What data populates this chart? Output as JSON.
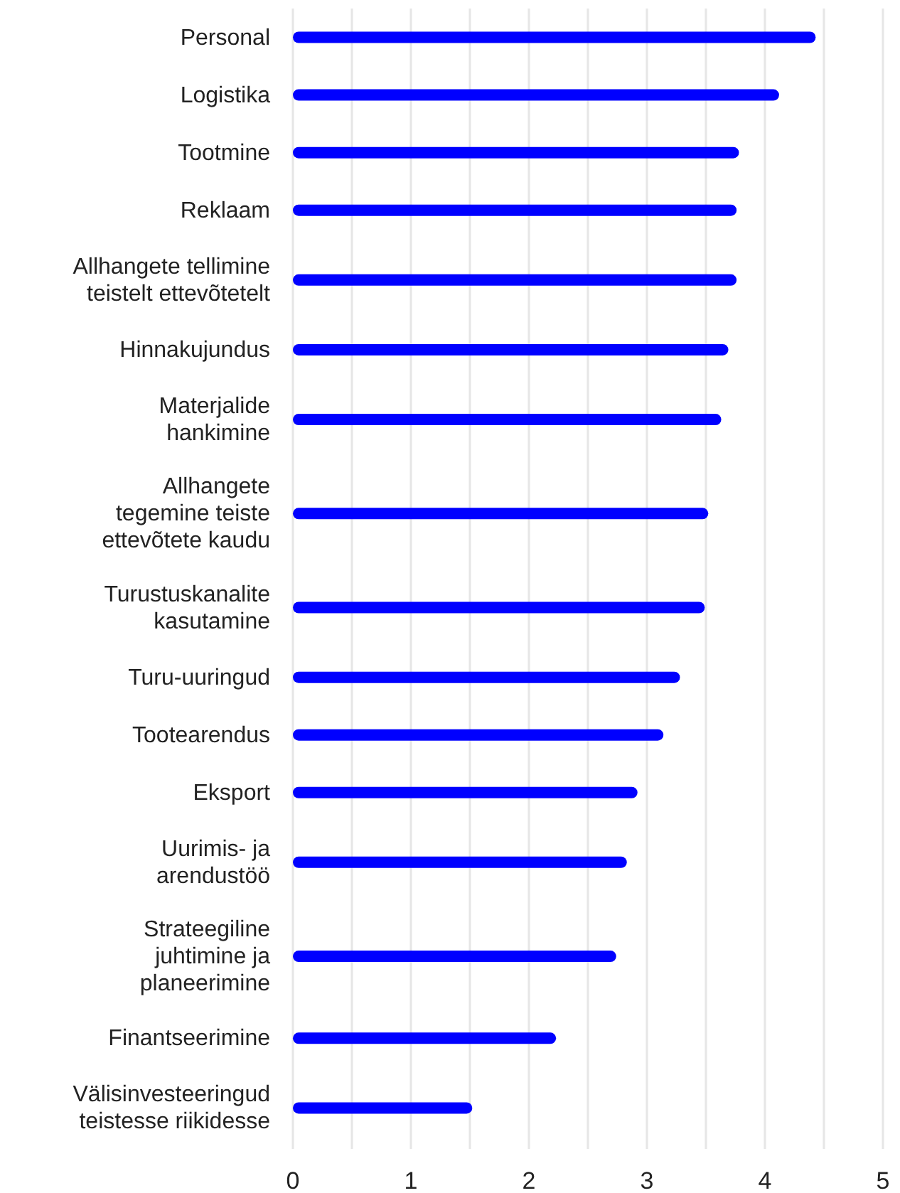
{
  "chart_data": {
    "type": "bar",
    "orientation": "horizontal",
    "categories": [
      "Personal",
      "Logistika",
      "Tootmine",
      "Reklaam",
      "Allhangete tellimine\nteistelt ettevõtetelt",
      "Hinnakujundus",
      "Materjalide\nhankimine",
      "Allhangete\ntegemine teiste\nettevõtete kaudu",
      "Turustuskanalite\nkasutamine",
      "Turu-uuringud",
      "Tootearendus",
      "Eksport",
      "Uurimis- ja\narendustöö",
      "Strateegiline\njuhtimine ja\nplaneerimine",
      "Finantseerimine",
      "Välisinvesteeringud\nteistesse riikidesse"
    ],
    "values": [
      4.43,
      4.12,
      3.78,
      3.76,
      3.76,
      3.69,
      3.63,
      3.52,
      3.49,
      3.28,
      3.14,
      2.92,
      2.83,
      2.74,
      2.23,
      1.52
    ],
    "color": "#0000ff",
    "xlim": [
      0,
      5
    ],
    "xticks": [
      0,
      {
        "value": 0.5,
        "label": null
      },
      1,
      {
        "value": 1.5,
        "label": null
      },
      2,
      {
        "value": 2.5,
        "label": null
      },
      3,
      {
        "value": 3.5,
        "label": null
      },
      4,
      {
        "value": 4.5,
        "label": null
      },
      5
    ],
    "grid": "x"
  }
}
